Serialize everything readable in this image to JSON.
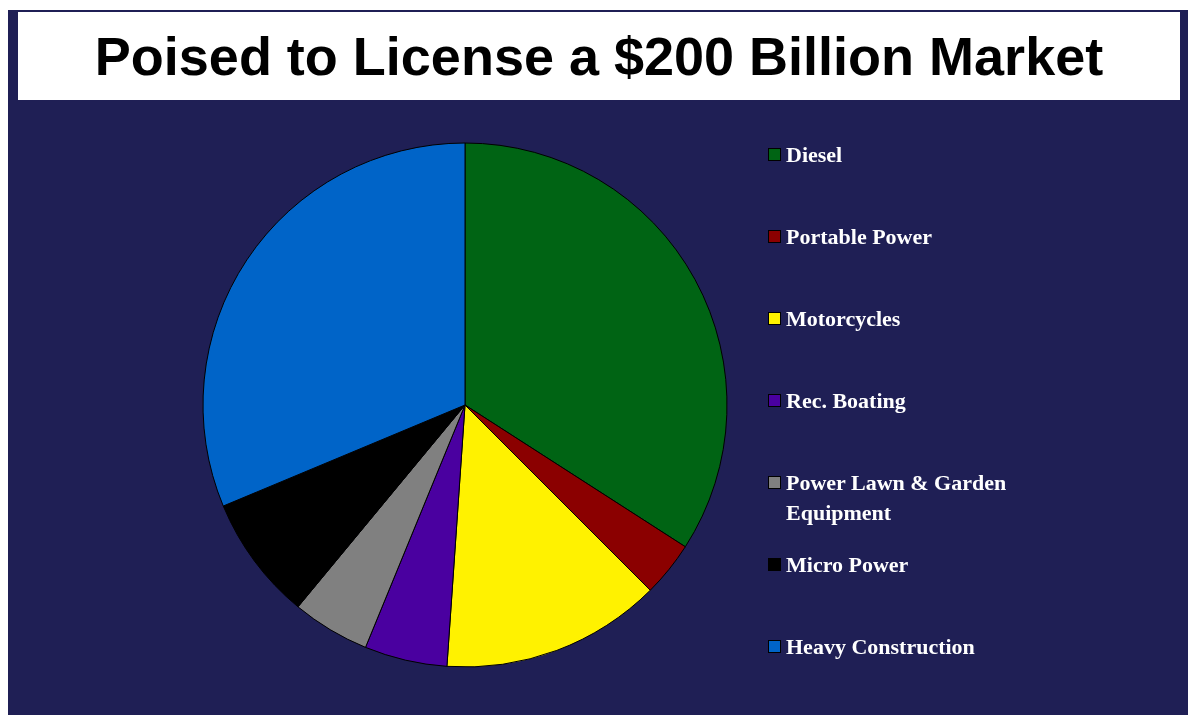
{
  "chart_data": {
    "type": "pie",
    "title": "Poised to License a $200 Billion Market",
    "categories": [
      "Diesel",
      "Portable Power",
      "Motorcycles",
      "Rec. Boating",
      "Power Lawn & Garden Equipment",
      "Micro Power",
      "Heavy Construction"
    ],
    "values": [
      34.1,
      3.4,
      13.6,
      5.1,
      4.8,
      7.7,
      31.3
    ],
    "colors": [
      "#006414",
      "#8b0000",
      "#fff200",
      "#4a00a0",
      "#808080",
      "#000000",
      "#0064c8"
    ],
    "legend": "right"
  }
}
